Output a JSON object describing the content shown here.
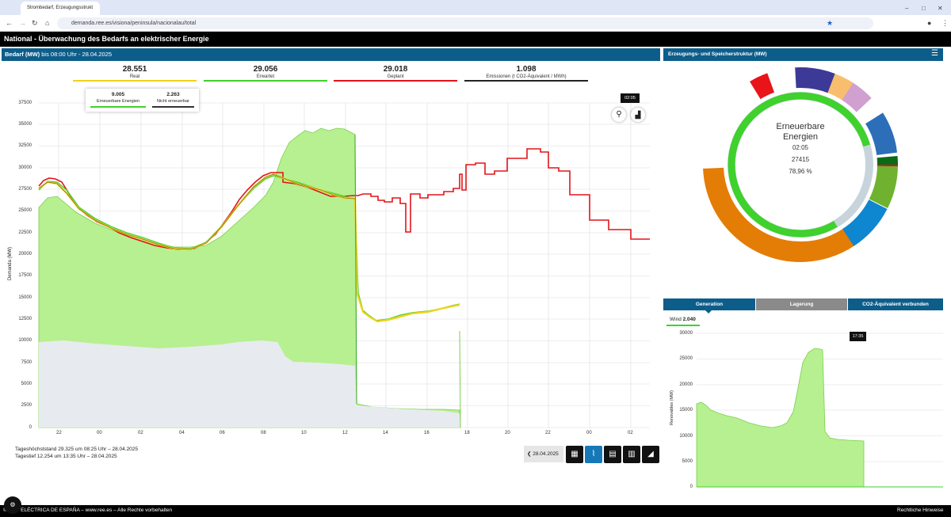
{
  "browser": {
    "tab_title": "Strombedarf, Erzeugungsstrukt",
    "url": "demanda.ree.es/visiona/peninsula/nacionalau/total"
  },
  "page": {
    "title": "National  - Überwachung des Bedarfs an elektrischer Energie"
  },
  "demand": {
    "header": "Bedarf (MW)",
    "header_suffix": " bis 08:00 Uhr - 28.04.2025",
    "stats": [
      {
        "value": "28.551",
        "label": "Real",
        "color": "#f2d21b"
      },
      {
        "value": "29.056",
        "label": "Erwartet",
        "color": "#3fd12c"
      },
      {
        "value": "29.018",
        "label": "Geplant",
        "color": "#e3141a"
      },
      {
        "value": "1.098",
        "label": "Emissionen (t CO2-Äquivalent / MWh)",
        "color": "#222"
      }
    ],
    "tooltip": {
      "renewable_value": "9.005",
      "renewable_label": "Erneuerbare Energien",
      "nonrenewable_value": "2.263",
      "nonrenewable_label": "Nicht erneuerbar"
    },
    "time_badge": "02:05",
    "y_axis_label": "Demanda (MW)",
    "y_ticks": [
      "37500",
      "35000",
      "32500",
      "30000",
      "27500",
      "25000",
      "22500",
      "20000",
      "17500",
      "15000",
      "12500",
      "10000",
      "7500",
      "5000",
      "2500",
      "0"
    ],
    "x_ticks": [
      "22",
      "00",
      "02",
      "04",
      "06",
      "08",
      "10",
      "12",
      "14",
      "16",
      "18",
      "20",
      "22",
      "00",
      "02"
    ],
    "max_text": "Tageshöchststand 29.325 um 08:25 Uhr – 28.04.2025",
    "min_text": "Tagestief 12.254 um 13:35 Uhr – 28.04.2025",
    "date": "28.04.2025"
  },
  "structure": {
    "header": "Erzeugungs- und Speicherstruktur (MW)",
    "center_title1": "Erneuerbare",
    "center_title2": "Energien",
    "center_time": "02:05",
    "center_value": "27415",
    "center_pct": "78,96 %"
  },
  "tabs": [
    "Generation",
    "Lagerung",
    "CO2-Äquivalent verbunden"
  ],
  "wind": {
    "label": "Wind",
    "value": "2.040",
    "time_badge": "17:35",
    "y_axis_label": "Renovables (MW)",
    "y_ticks": [
      "30000",
      "25000",
      "20000",
      "15000",
      "10000",
      "5000",
      "0"
    ]
  },
  "footer": {
    "left": "© RED ELÉCTRICA DE ESPAÑA – www.ree.es – Alle Rechte vorbehalten",
    "right": "Rechtliche Hinweise"
  },
  "chart_data": [
    {
      "type": "line",
      "title": "Bedarf (MW)",
      "ylabel": "Demanda (MW)",
      "ylim": [
        0,
        37500
      ],
      "x": [
        "22",
        "00",
        "02",
        "04",
        "06",
        "08",
        "10",
        "12",
        "14",
        "16",
        "18",
        "20",
        "22",
        "00",
        "02"
      ],
      "series": [
        {
          "name": "Real",
          "values": [
            27500,
            23500,
            21500,
            20500,
            21000,
            28000,
            27500,
            26500,
            12500,
            13500,
            null,
            null,
            null,
            null,
            null
          ]
        },
        {
          "name": "Erwartet",
          "values": [
            27800,
            23800,
            21700,
            20800,
            21500,
            28500,
            27800,
            26800,
            12800,
            13700,
            null,
            null,
            null,
            null,
            null
          ]
        },
        {
          "name": "Geplant",
          "values": [
            28500,
            24000,
            22000,
            20600,
            21500,
            29200,
            27800,
            26800,
            26000,
            26800,
            30200,
            31500,
            27000,
            24000,
            21500
          ]
        }
      ]
    },
    {
      "type": "line",
      "title": "Wind",
      "ylabel": "Renovables (MW)",
      "ylim": [
        0,
        30000
      ],
      "series": [
        {
          "name": "Wind",
          "values": [
            16500,
            14000,
            12000,
            11500,
            13000,
            22000,
            27500,
            9500,
            9000
          ]
        }
      ]
    }
  ]
}
